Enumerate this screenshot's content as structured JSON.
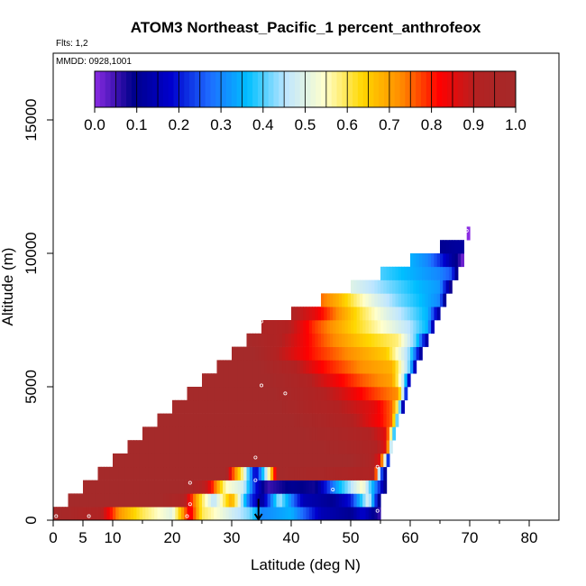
{
  "chart_data": {
    "type": "heatmap",
    "title": "ATOM3 Northeast_Pacific_1 percent_anthrofeox",
    "subtitle_flights": "Flts: 1,2",
    "subtitle_dates": "MMDD: 0928,1001",
    "xlabel": "Latitude (deg N)",
    "ylabel": "Altitude (m)",
    "xlim": [
      0,
      85
    ],
    "ylim": [
      0,
      17500
    ],
    "x_ticks": [
      0,
      5,
      10,
      20,
      30,
      40,
      50,
      60,
      70,
      80
    ],
    "x_tick_labels": [
      "0",
      "5",
      "10",
      "20",
      "30",
      "40",
      "50",
      "60",
      "70",
      "80"
    ],
    "y_ticks": [
      0,
      5000,
      10000,
      15000
    ],
    "y_tick_labels": [
      "0",
      "5000",
      "10000",
      "15000"
    ],
    "colorbar": {
      "ticks": [
        0.0,
        0.1,
        0.2,
        0.3,
        0.4,
        0.5,
        0.6,
        0.7,
        0.8,
        0.9,
        1.0
      ],
      "tick_labels": [
        "0.0",
        "0.1",
        "0.2",
        "0.3",
        "0.4",
        "0.5",
        "0.6",
        "0.7",
        "0.8",
        "0.9",
        "1.0"
      ],
      "colors": [
        "#8a2be2",
        "#00008b",
        "#0000cd",
        "#1e6cff",
        "#00bfff",
        "#bfe6ff",
        "#ffffcc",
        "#ffd700",
        "#ff8c00",
        "#ff0000",
        "#b22222",
        "#a52a2a"
      ]
    },
    "rows": [
      {
        "alt": 250,
        "lat_start": 0,
        "lat_end": 55,
        "profile": [
          [
            0,
            1.0
          ],
          [
            8,
            0.92
          ],
          [
            11,
            0.72
          ],
          [
            15,
            0.6
          ],
          [
            20,
            0.5
          ],
          [
            23,
            0.85
          ],
          [
            25,
            0.6
          ],
          [
            30,
            0.48
          ],
          [
            33,
            0.42
          ],
          [
            35,
            0.3
          ],
          [
            40,
            0.35
          ],
          [
            45,
            0.15
          ],
          [
            50,
            0.1
          ],
          [
            52,
            0.18
          ],
          [
            55,
            0.05
          ]
        ]
      },
      {
        "alt": 750,
        "lat_start": 2.5,
        "lat_end": 55,
        "profile": [
          [
            2.5,
            1.0
          ],
          [
            18,
            1.0
          ],
          [
            22,
            0.93
          ],
          [
            25,
            0.6
          ],
          [
            27,
            0.45
          ],
          [
            30,
            0.7
          ],
          [
            33,
            0.25
          ],
          [
            35,
            0.1
          ],
          [
            38,
            0.45
          ],
          [
            42,
            0.15
          ],
          [
            47,
            0.1
          ],
          [
            50,
            0.2
          ],
          [
            53,
            0.5
          ],
          [
            55,
            0.05
          ]
        ]
      },
      {
        "alt": 1250,
        "lat_start": 5,
        "lat_end": 56,
        "profile": [
          [
            5,
            1.0
          ],
          [
            22,
            1.0
          ],
          [
            26,
            0.88
          ],
          [
            29,
            0.55
          ],
          [
            32,
            0.48
          ],
          [
            34,
            0.2
          ],
          [
            36,
            0.05
          ],
          [
            40,
            0.1
          ],
          [
            44,
            0.08
          ],
          [
            48,
            0.35
          ],
          [
            52,
            0.55
          ],
          [
            55,
            0.2
          ],
          [
            56,
            0.05
          ]
        ]
      },
      {
        "alt": 1750,
        "lat_start": 7.5,
        "lat_end": 56,
        "profile": [
          [
            7.5,
            1.0
          ],
          [
            29,
            1.0
          ],
          [
            30,
            0.8
          ],
          [
            32,
            0.55
          ],
          [
            34,
            0.15
          ],
          [
            36,
            0.5
          ],
          [
            38,
            1.0
          ],
          [
            46,
            0.97
          ],
          [
            54,
            0.92
          ],
          [
            55,
            0.3
          ],
          [
            56,
            0.05
          ]
        ]
      },
      {
        "alt": 2250,
        "lat_start": 10,
        "lat_end": 56.5,
        "profile": [
          [
            10,
            1.0
          ],
          [
            50,
            1.0
          ],
          [
            53,
            0.95
          ],
          [
            55,
            0.85
          ],
          [
            56,
            0.4
          ],
          [
            56.5,
            0.05
          ]
        ]
      },
      {
        "alt": 2750,
        "lat_start": 12.5,
        "lat_end": 57,
        "profile": [
          [
            12.5,
            1.0
          ],
          [
            45,
            1.0
          ],
          [
            50,
            0.97
          ],
          [
            54,
            0.93
          ],
          [
            56,
            0.85
          ],
          [
            57,
            0.35
          ]
        ]
      },
      {
        "alt": 3250,
        "lat_start": 15,
        "lat_end": 57.5,
        "profile": [
          [
            15,
            1.0
          ],
          [
            42,
            1.0
          ],
          [
            48,
            0.96
          ],
          [
            53,
            0.92
          ],
          [
            56,
            0.85
          ],
          [
            57.5,
            0.3
          ]
        ]
      },
      {
        "alt": 3750,
        "lat_start": 17.5,
        "lat_end": 58,
        "profile": [
          [
            17.5,
            1.0
          ],
          [
            40,
            1.0
          ],
          [
            46,
            0.95
          ],
          [
            51,
            0.9
          ],
          [
            55,
            0.82
          ],
          [
            57,
            0.75
          ],
          [
            58,
            0.3
          ]
        ]
      },
      {
        "alt": 4250,
        "lat_start": 20,
        "lat_end": 59,
        "profile": [
          [
            20,
            1.0
          ],
          [
            38,
            1.0
          ],
          [
            43,
            0.95
          ],
          [
            49,
            0.9
          ],
          [
            54,
            0.85
          ],
          [
            57,
            0.75
          ],
          [
            58,
            0.55
          ],
          [
            59,
            0.02
          ]
        ]
      },
      {
        "alt": 4750,
        "lat_start": 22.5,
        "lat_end": 59.5,
        "profile": [
          [
            22.5,
            1.0
          ],
          [
            37,
            1.0
          ],
          [
            42,
            0.95
          ],
          [
            48,
            0.88
          ],
          [
            54,
            0.78
          ],
          [
            58,
            0.72
          ],
          [
            59,
            0.4
          ],
          [
            59.5,
            0.05
          ]
        ]
      },
      {
        "alt": 5250,
        "lat_start": 25,
        "lat_end": 60,
        "profile": [
          [
            25,
            1.0
          ],
          [
            36,
            1.0
          ],
          [
            41,
            0.95
          ],
          [
            46,
            0.86
          ],
          [
            52,
            0.76
          ],
          [
            57,
            0.7
          ],
          [
            59,
            0.45
          ],
          [
            60,
            0.08
          ]
        ]
      },
      {
        "alt": 5750,
        "lat_start": 27.5,
        "lat_end": 61,
        "profile": [
          [
            27.5,
            1.0
          ],
          [
            35,
            1.0
          ],
          [
            40,
            0.93
          ],
          [
            45,
            0.82
          ],
          [
            52,
            0.72
          ],
          [
            57,
            0.68
          ],
          [
            60,
            0.4
          ],
          [
            61,
            0.08
          ]
        ]
      },
      {
        "alt": 6250,
        "lat_start": 30,
        "lat_end": 62,
        "profile": [
          [
            30,
            1.0
          ],
          [
            34,
            1.0
          ],
          [
            38,
            0.9
          ],
          [
            44,
            0.8
          ],
          [
            50,
            0.72
          ],
          [
            56,
            0.65
          ],
          [
            60,
            0.42
          ],
          [
            62,
            0.08
          ]
        ]
      },
      {
        "alt": 6750,
        "lat_start": 32.5,
        "lat_end": 63,
        "profile": [
          [
            32.5,
            1.0
          ],
          [
            36,
            0.95
          ],
          [
            40,
            0.88
          ],
          [
            46,
            0.75
          ],
          [
            52,
            0.65
          ],
          [
            58,
            0.58
          ],
          [
            61,
            0.4
          ],
          [
            63,
            0.1
          ]
        ]
      },
      {
        "alt": 7250,
        "lat_start": 35,
        "lat_end": 64,
        "profile": [
          [
            35,
            0.95
          ],
          [
            40,
            0.9
          ],
          [
            44,
            0.78
          ],
          [
            50,
            0.65
          ],
          [
            55,
            0.55
          ],
          [
            60,
            0.45
          ],
          [
            63,
            0.35
          ],
          [
            64,
            0.1
          ]
        ]
      },
      {
        "alt": 7750,
        "lat_start": 40,
        "lat_end": 65,
        "profile": [
          [
            40,
            0.92
          ],
          [
            44,
            0.85
          ],
          [
            48,
            0.72
          ],
          [
            52,
            0.6
          ],
          [
            56,
            0.5
          ],
          [
            60,
            0.42
          ],
          [
            63,
            0.35
          ],
          [
            65,
            0.1
          ]
        ]
      },
      {
        "alt": 8250,
        "lat_start": 45,
        "lat_end": 66,
        "profile": [
          [
            45,
            0.75
          ],
          [
            48,
            0.68
          ],
          [
            51,
            0.58
          ],
          [
            54,
            0.5
          ],
          [
            58,
            0.42
          ],
          [
            62,
            0.36
          ],
          [
            65,
            0.3
          ],
          [
            66,
            0.05
          ]
        ]
      },
      {
        "alt": 8750,
        "lat_start": 50,
        "lat_end": 67,
        "profile": [
          [
            50,
            0.5
          ],
          [
            54,
            0.45
          ],
          [
            58,
            0.4
          ],
          [
            62,
            0.35
          ],
          [
            65,
            0.32
          ],
          [
            67,
            0.05
          ]
        ]
      },
      {
        "alt": 9250,
        "lat_start": 55,
        "lat_end": 68,
        "profile": [
          [
            55,
            0.4
          ],
          [
            58,
            0.37
          ],
          [
            62,
            0.33
          ],
          [
            65,
            0.3
          ],
          [
            67,
            0.25
          ],
          [
            68,
            0.05
          ]
        ]
      },
      {
        "alt": 9750,
        "lat_start": 60,
        "lat_end": 69,
        "profile": [
          [
            60,
            0.35
          ],
          [
            63,
            0.3
          ],
          [
            65,
            0.22
          ],
          [
            67,
            0.12
          ],
          [
            68,
            0.08
          ],
          [
            69,
            0.0
          ]
        ]
      },
      {
        "alt": 10250,
        "lat_start": 65,
        "lat_end": 69,
        "profile": [
          [
            65,
            0.1
          ],
          [
            69,
            0.12
          ]
        ]
      },
      {
        "alt": 10750,
        "lat_start": 69.5,
        "lat_end": 70,
        "profile": [
          [
            69.5,
            0.0
          ],
          [
            70,
            0.0
          ]
        ]
      }
    ],
    "markers": [
      {
        "lat": 0.5,
        "alt": 150
      },
      {
        "lat": 6,
        "alt": 150
      },
      {
        "lat": 22.5,
        "alt": 150
      },
      {
        "lat": 23,
        "alt": 600
      },
      {
        "lat": 23,
        "alt": 1400
      },
      {
        "lat": 34,
        "alt": 1500
      },
      {
        "lat": 47,
        "alt": 1150
      },
      {
        "lat": 54.5,
        "alt": 350
      },
      {
        "lat": 54.5,
        "alt": 2000
      },
      {
        "lat": 34,
        "alt": 2350
      },
      {
        "lat": 35,
        "alt": 5050
      },
      {
        "lat": 39,
        "alt": 4750
      },
      {
        "lat": 35,
        "alt": 7450
      },
      {
        "lat": 69.5,
        "alt": 10850
      }
    ],
    "arrow": {
      "lat": 34.5,
      "alt_from": 800,
      "alt_to": 0
    }
  }
}
